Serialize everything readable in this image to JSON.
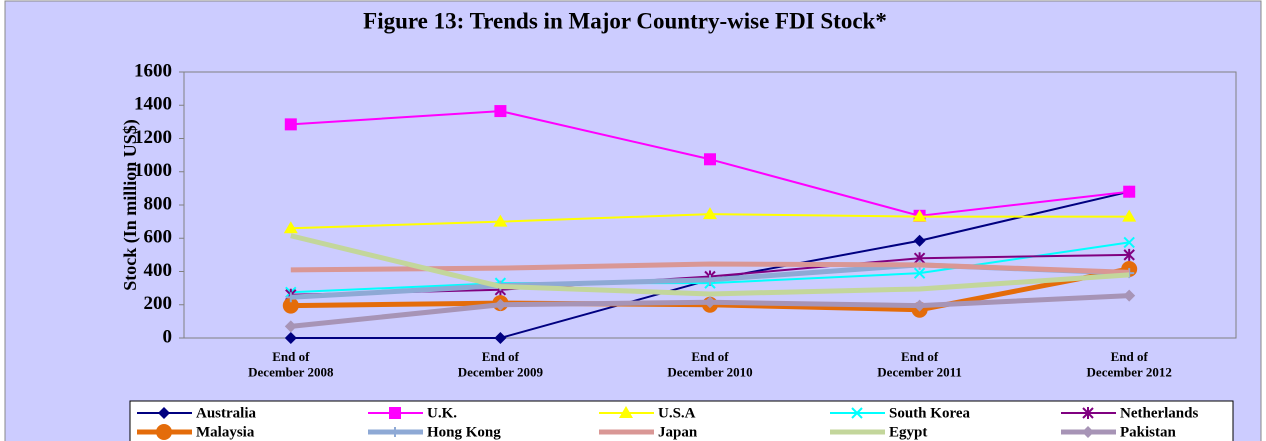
{
  "chart_data": {
    "type": "line",
    "title": "Figure 13: Trends in Major Country-wise FDI Stock*",
    "y_label": "Stock (In million US$)",
    "categories": [
      "End of\nDecember 2008",
      "End of\nDecember 2009",
      "End of\nDecember 2010",
      "End of\nDecember 2011",
      "End of\nDecember 2012"
    ],
    "ylim": [
      0,
      1600
    ],
    "yticks": [
      0,
      200,
      400,
      600,
      800,
      1000,
      1200,
      1400,
      1600
    ],
    "grid": false,
    "legend": "bottom",
    "series": [
      {
        "name": "Australia",
        "color": "#000080",
        "marker": "diamond",
        "line_width": 2,
        "values": [
          0,
          0,
          350,
          585,
          880
        ]
      },
      {
        "name": "U.K.",
        "color": "#ff00ff",
        "marker": "square",
        "line_width": 2,
        "values": [
          1285,
          1365,
          1075,
          735,
          880
        ]
      },
      {
        "name": "U.S.A",
        "color": "#ffff00",
        "marker": "triangle",
        "line_width": 2,
        "values": [
          660,
          700,
          745,
          730,
          730
        ]
      },
      {
        "name": "South Korea",
        "color": "#00ffff",
        "marker": "x",
        "line_width": 2,
        "values": [
          275,
          330,
          330,
          390,
          575
        ]
      },
      {
        "name": "Netherlands",
        "color": "#800080",
        "marker": "star",
        "line_width": 2,
        "values": [
          260,
          290,
          370,
          480,
          500
        ]
      },
      {
        "name": "Malaysia",
        "color": "#e46c0a",
        "marker": "circle",
        "line_width": 5,
        "values": [
          195,
          210,
          200,
          170,
          415
        ]
      },
      {
        "name": "Hong Kong",
        "color": "#8ea9d5",
        "marker": "plus",
        "line_width": 5,
        "values": [
          245,
          315,
          350,
          440,
          390
        ]
      },
      {
        "name": "Japan",
        "color": "#d99795",
        "marker": "none",
        "line_width": 5,
        "values": [
          410,
          420,
          445,
          440,
          395
        ]
      },
      {
        "name": "Egypt",
        "color": "#c3d69b",
        "marker": "none",
        "line_width": 5,
        "values": [
          615,
          310,
          265,
          295,
          380
        ]
      },
      {
        "name": "Pakistan",
        "color": "#a794b6",
        "marker": "diamond",
        "line_width": 5,
        "values": [
          70,
          200,
          215,
          195,
          255
        ]
      }
    ]
  }
}
